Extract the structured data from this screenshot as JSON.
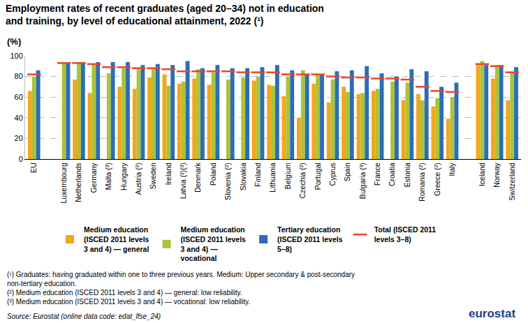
{
  "chart_data": {
    "type": "bar",
    "title": "Employment rates of recent graduates (aged 20–34) not in education and training, by level of educational attainment, 2022 (¹)",
    "subtitle": "(%)",
    "categories": [
      "EU",
      null,
      "Luxembourg",
      "Netherlands",
      "Germany",
      "Malta (³)",
      "Hungary",
      "Austria (²)",
      "Sweden",
      "Ireland",
      "Latvia (²)(³)",
      "Denmark",
      "Poland",
      "Slovenia (²)",
      "Slovakia",
      "Finland",
      "Lithuania",
      "Belgium",
      "Czechia (²)",
      "Portugal",
      "Cyprus",
      "Spain",
      "Bulgaria (³)",
      "France",
      "Croatia",
      "Estonia",
      "Romania (²)",
      "Greece (²)",
      "Italy",
      null,
      "Iceland",
      "Norway",
      "Switzerland"
    ],
    "series": [
      {
        "name": "Medium education (ISCED 2011 levels 3 and 4) — general",
        "color": "#f2a71b",
        "values": [
          66,
          null,
          null,
          77,
          64,
          null,
          70,
          68,
          79,
          82,
          73,
          78,
          72,
          null,
          null,
          76,
          72,
          61,
          40,
          73,
          55,
          70,
          63,
          66,
          null,
          57,
          63,
          51,
          39,
          null,
          91,
          78,
          57
        ]
      },
      {
        "name": "Medium education (ISCED 2011 levels 3 and 4) — vocational",
        "color": "#a9c33b",
        "values": [
          80,
          null,
          93,
          93,
          92,
          83,
          88,
          87,
          88,
          71,
          75,
          87,
          84,
          77,
          79,
          80,
          71,
          80,
          86,
          82,
          77,
          65,
          64,
          68,
          75,
          74,
          57,
          59,
          60,
          null,
          95,
          91,
          84
        ]
      },
      {
        "name": "Tertiary education (ISCED 2011 levels 5–8)",
        "color": "#2c6db5",
        "values": [
          86,
          null,
          93,
          94,
          94,
          94,
          94,
          91,
          92,
          91,
          95,
          88,
          91,
          88,
          88,
          89,
          91,
          86,
          82,
          82,
          85,
          86,
          90,
          83,
          80,
          87,
          85,
          70,
          74,
          null,
          91,
          91,
          89
        ]
      },
      {
        "name": "Total (ISCED 2011 levels 3–8)",
        "color": "#e5472b",
        "type": "scatter",
        "marker": "line",
        "values": [
          82,
          null,
          93,
          93,
          92,
          89,
          89,
          88,
          88,
          87,
          85,
          85,
          85,
          85,
          84,
          84,
          84,
          82,
          82,
          82,
          80,
          79,
          79,
          78,
          78,
          77,
          70,
          66,
          65,
          null,
          92,
          90,
          84
        ]
      }
    ],
    "ylim": [
      0,
      100
    ],
    "yticks": [
      0,
      20,
      40,
      60,
      80,
      100
    ],
    "grid": true,
    "legend": "bottom",
    "notes": [
      "(¹) Graduates: having graduated within one to three previous years. Medium: Upper secondary & post-secondary non-tertiary education.",
      "(²) Medium education (ISCED 2011 levels 3 and 4) — general: low reliability.",
      "(³) Medium education (ISCED 2011 levels 3 and 4) — vocational: low reliability."
    ],
    "source": "Source: Eurostat (online data code: edat_lfse_24)",
    "logo": "eurostat"
  }
}
